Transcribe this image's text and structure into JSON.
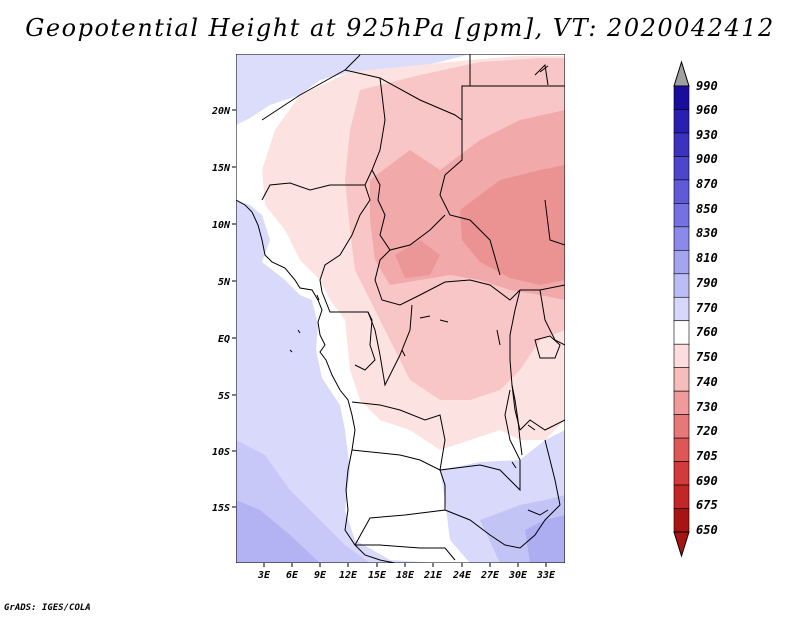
{
  "title": "Geopotential Height at 925hPa [gpm], VT: 2020042412",
  "credit": "GrADS: IGES/COLA",
  "map": {
    "lon_labels": [
      "3E",
      "6E",
      "9E",
      "12E",
      "15E",
      "18E",
      "21E",
      "24E",
      "27E",
      "30E",
      "33E"
    ],
    "lat_labels": [
      "20N",
      "15N",
      "10N",
      "5N",
      "EQ",
      "5S",
      "10S",
      "15S"
    ]
  },
  "colorbar": {
    "labels": [
      "990",
      "960",
      "930",
      "900",
      "870",
      "850",
      "830",
      "810",
      "790",
      "770",
      "760",
      "750",
      "740",
      "730",
      "720",
      "705",
      "690",
      "675",
      "650"
    ],
    "colors": [
      "#1a0d9e",
      "#2a1fb0",
      "#3b32c0",
      "#4d46cc",
      "#5f5bd8",
      "#7472e2",
      "#8b8aea",
      "#a4a4f0",
      "#bdbdf6",
      "#d6d7fa",
      "#ffffff",
      "#fcdcdc",
      "#f7bcbc",
      "#f09a9a",
      "#e87777",
      "#df5656",
      "#d33a3a",
      "#c22626",
      "#a81414"
    ]
  }
}
